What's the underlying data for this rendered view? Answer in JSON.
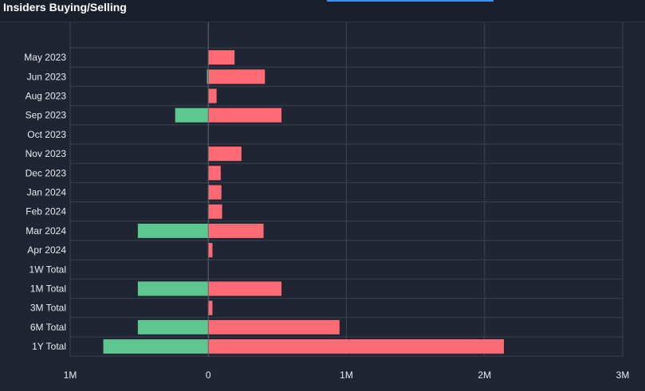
{
  "header": {
    "title": "Insiders Buying/Selling"
  },
  "colors": {
    "buy": "#5ec690",
    "sell": "#ff6b74",
    "grid": "#394150",
    "background": "#1f2532",
    "accent": "#3d8ff0"
  },
  "chart_data": {
    "type": "bar",
    "orientation": "horizontal",
    "categories": [
      "May 2023",
      "Jun 2023",
      "Aug 2023",
      "Sep 2023",
      "Oct 2023",
      "Nov 2023",
      "Dec 2023",
      "Jan 2024",
      "Feb 2024",
      "Mar 2024",
      "Apr 2024",
      "1W Total",
      "1M Total",
      "3M Total",
      "6M Total",
      "1Y Total"
    ],
    "series": [
      {
        "color": "#5ec690",
        "values": [
          0,
          -10000,
          0,
          -240000,
          0,
          0,
          0,
          0,
          0,
          -510000,
          0,
          0,
          -510000,
          0,
          -510000,
          -760000
        ]
      },
      {
        "color": "#ff6b74",
        "values": [
          190000,
          410000,
          60000,
          530000,
          0,
          240000,
          90000,
          95000,
          100000,
          400000,
          30000,
          0,
          530000,
          30000,
          950000,
          2140000
        ]
      }
    ],
    "xlim": [
      -1000000,
      3000000
    ],
    "x_ticks": [
      -1000000,
      0,
      1000000,
      2000000,
      3000000
    ],
    "x_tick_labels": [
      "1M",
      "0",
      "1M",
      "2M",
      "3M"
    ],
    "grid": true,
    "legend": "none"
  }
}
